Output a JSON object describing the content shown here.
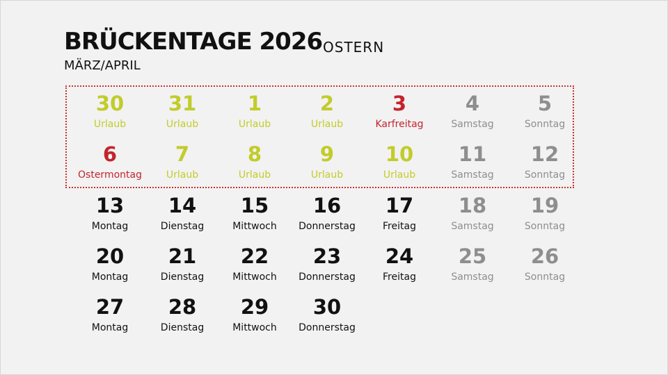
{
  "colors": {
    "urlaub": "#c2cc2a",
    "holiday": "#c4242c",
    "weekend": "#8e8e8e",
    "workday": "#111111",
    "highlight_border": "#c9302c"
  },
  "title": "BRÜCKENTAGE 2026",
  "title_suffix": "OSTERN",
  "subtitle": "MÄRZ/APRIL",
  "weeks": [
    [
      {
        "day": "30",
        "label": "Urlaub",
        "type": "urlaub"
      },
      {
        "day": "31",
        "label": "Urlaub",
        "type": "urlaub"
      },
      {
        "day": "1",
        "label": "Urlaub",
        "type": "urlaub"
      },
      {
        "day": "2",
        "label": "Urlaub",
        "type": "urlaub"
      },
      {
        "day": "3",
        "label": "Karfreitag",
        "type": "holiday"
      },
      {
        "day": "4",
        "label": "Samstag",
        "type": "weekend"
      },
      {
        "day": "5",
        "label": "Sonntag",
        "type": "weekend"
      }
    ],
    [
      {
        "day": "6",
        "label": "Ostermontag",
        "type": "holiday"
      },
      {
        "day": "7",
        "label": "Urlaub",
        "type": "urlaub"
      },
      {
        "day": "8",
        "label": "Urlaub",
        "type": "urlaub"
      },
      {
        "day": "9",
        "label": "Urlaub",
        "type": "urlaub"
      },
      {
        "day": "10",
        "label": "Urlaub",
        "type": "urlaub"
      },
      {
        "day": "11",
        "label": "Samstag",
        "type": "weekend"
      },
      {
        "day": "12",
        "label": "Sonntag",
        "type": "weekend"
      }
    ],
    [
      {
        "day": "13",
        "label": "Montag",
        "type": "workday"
      },
      {
        "day": "14",
        "label": "Dienstag",
        "type": "workday"
      },
      {
        "day": "15",
        "label": "Mittwoch",
        "type": "workday"
      },
      {
        "day": "16",
        "label": "Donnerstag",
        "type": "workday"
      },
      {
        "day": "17",
        "label": "Freitag",
        "type": "workday"
      },
      {
        "day": "18",
        "label": "Samstag",
        "type": "weekend"
      },
      {
        "day": "19",
        "label": "Sonntag",
        "type": "weekend"
      }
    ],
    [
      {
        "day": "20",
        "label": "Montag",
        "type": "workday"
      },
      {
        "day": "21",
        "label": "Dienstag",
        "type": "workday"
      },
      {
        "day": "22",
        "label": "Mittwoch",
        "type": "workday"
      },
      {
        "day": "23",
        "label": "Donnerstag",
        "type": "workday"
      },
      {
        "day": "24",
        "label": "Freitag",
        "type": "workday"
      },
      {
        "day": "25",
        "label": "Samstag",
        "type": "weekend"
      },
      {
        "day": "26",
        "label": "Sonntag",
        "type": "weekend"
      }
    ],
    [
      {
        "day": "27",
        "label": "Montag",
        "type": "workday"
      },
      {
        "day": "28",
        "label": "Dienstag",
        "type": "workday"
      },
      {
        "day": "29",
        "label": "Mittwoch",
        "type": "workday"
      },
      {
        "day": "30",
        "label": "Donnerstag",
        "type": "workday"
      }
    ]
  ]
}
